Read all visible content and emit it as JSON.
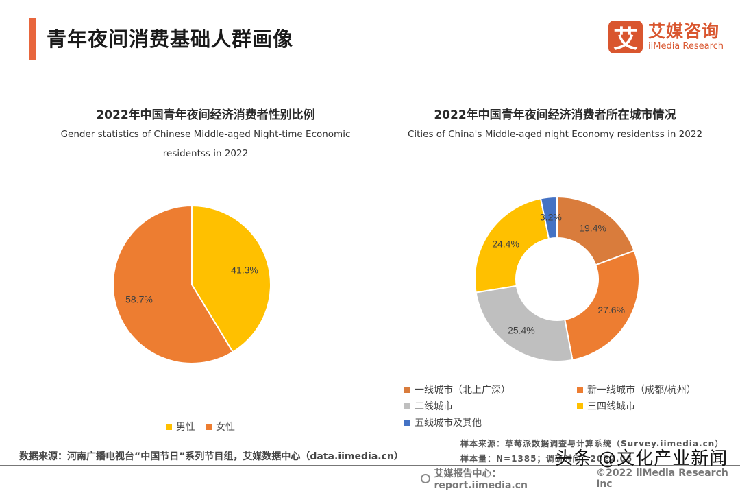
{
  "header": {
    "title": "青年夜间消费基础人群画像",
    "logo_mark": "艾",
    "logo_cn": "艾媒咨询",
    "logo_en": "iiMedia Research"
  },
  "colors": {
    "accent": "#e8663d",
    "brand": "#d9562f",
    "orange": "#ed7d31",
    "brown_orange": "#d97c3c",
    "yellow": "#ffc000",
    "gray": "#bfbfbf",
    "blue": "#4472c4"
  },
  "chart_data": [
    {
      "type": "pie",
      "title": "2022年中国青年夜间经济消费者性别比例",
      "subtitle_line1": "Gender statistics of Chinese Middle-aged Night-time Economic",
      "subtitle_line2": "residentss in 2022",
      "categories": [
        "男性",
        "女性"
      ],
      "values": [
        41.3,
        58.7
      ],
      "labels": [
        "41.3%",
        "58.7%"
      ],
      "colors": [
        "#ffc000",
        "#ed7d31"
      ],
      "legend_position": "bottom"
    },
    {
      "type": "pie",
      "variant": "donut",
      "title": "2022年中国青年夜间经济消费者所在城市情况",
      "subtitle_line1": "Cities of China's Middle-aged night Economy residentss in 2022",
      "categories": [
        "一线城市（北上广深）",
        "新一线城市（成都/杭州）",
        "二线城市",
        "三四线城市",
        "五线城市及其他"
      ],
      "values": [
        19.4,
        27.6,
        25.4,
        24.4,
        3.2
      ],
      "labels": [
        "19.4%",
        "27.6%",
        "25.4%",
        "24.4%",
        "3.2%"
      ],
      "colors": [
        "#d97c3c",
        "#ed7d31",
        "#bfbfbf",
        "#ffc000",
        "#4472c4"
      ],
      "legend_position": "bottom"
    }
  ],
  "footer": {
    "data_source": "数据来源：河南广播电视台“中国节日”系列节目组，艾媒数据中心（data.iimedia.cn）",
    "sample_source": "样本来源：草莓派数据调查与计算系统（Survey.iimedia.cn）",
    "sample_size": "样本量：N=1385；调研时间：2022.06",
    "report_center": "艾媒报告中心：report.iimedia.cn",
    "copyright": "©2022  iiMedia Research  Inc",
    "watermark": "头条 @文化产业新闻"
  }
}
